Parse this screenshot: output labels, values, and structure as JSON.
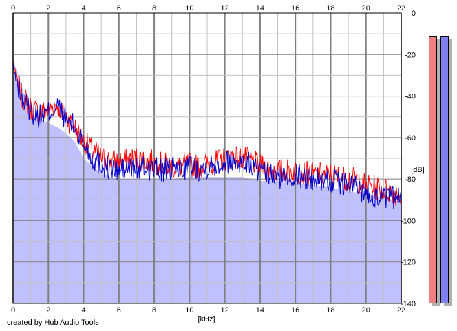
{
  "footer": {
    "credit": "created by Hub Audio Tools"
  },
  "colors": {
    "fill": "#c0c0ff",
    "left_channel": "#ff0000",
    "right_channel": "#0000cc",
    "grid_minor": "#c0c0c0",
    "grid_major": "#808080",
    "meter_left": "#f08080",
    "meter_right": "#8080f0"
  },
  "meters": {
    "left_level": 1.0,
    "right_level": 1.0
  },
  "chart_data": {
    "type": "line",
    "title": "",
    "xlabel": "[kHz]",
    "ylabel": "[dB]",
    "xlim": [
      0,
      22
    ],
    "ylim": [
      -140,
      0
    ],
    "x_ticks": [
      "0",
      "2",
      "4",
      "6",
      "8",
      "10",
      "12",
      "14",
      "16",
      "18",
      "20",
      "22"
    ],
    "y_ticks": [
      "0",
      "-20",
      "-40",
      "-60",
      "-80",
      "-100",
      "-120",
      "-140"
    ],
    "grid": true,
    "legend": "none",
    "fill_series": {
      "x": [
        0,
        0.1,
        0.3,
        0.5,
        0.8,
        1.0,
        1.5,
        2.0,
        2.5,
        3.0,
        3.5,
        4.0,
        4.5,
        5.0,
        5.5,
        6.0,
        7.0,
        8.0,
        9.0,
        10.0,
        11.0,
        12.0,
        13.0,
        14.0,
        15.0,
        16.0,
        17.0,
        18.0,
        19.0,
        20.0,
        21.0,
        22.0
      ],
      "y": [
        -22,
        -25,
        -30,
        -36,
        -43,
        -48,
        -51,
        -53,
        -55,
        -58,
        -62,
        -70,
        -74,
        -77,
        -79,
        -80,
        -80,
        -80,
        -80,
        -79,
        -79,
        -79,
        -79,
        -81,
        -81,
        -82,
        -83,
        -84,
        -86,
        -87,
        -89,
        -91
      ]
    },
    "series": [
      {
        "color": "#ff0000",
        "x": [
          0,
          0.1,
          0.3,
          0.5,
          0.8,
          1.0,
          1.5,
          2.0,
          2.5,
          3.0,
          3.5,
          4.0,
          4.5,
          5.0,
          5.5,
          6.0,
          6.5,
          7.0,
          7.5,
          8.0,
          8.5,
          9.0,
          9.5,
          10.0,
          10.5,
          11.0,
          11.5,
          12.0,
          12.5,
          13.0,
          13.5,
          14.0,
          14.5,
          15.0,
          15.5,
          16.0,
          16.5,
          17.0,
          17.5,
          18.0,
          18.5,
          19.0,
          19.5,
          20.0,
          20.5,
          21.0,
          21.5,
          22.0
        ],
        "y": [
          -23,
          -28,
          -35,
          -40,
          -43,
          -46,
          -48,
          -47,
          -44,
          -50,
          -55,
          -62,
          -66,
          -70,
          -71,
          -72,
          -71,
          -70,
          -71,
          -72,
          -73,
          -74,
          -74,
          -73,
          -74,
          -73,
          -72,
          -70,
          -69,
          -70,
          -71,
          -74,
          -75,
          -76,
          -76,
          -76,
          -77,
          -78,
          -78,
          -78,
          -79,
          -80,
          -80,
          -83,
          -84,
          -85,
          -86,
          -88
        ]
      },
      {
        "color": "#0000cc",
        "x": [
          0,
          0.1,
          0.3,
          0.5,
          0.8,
          1.0,
          1.5,
          2.0,
          2.5,
          3.0,
          3.5,
          4.0,
          4.5,
          5.0,
          5.5,
          6.0,
          6.5,
          7.0,
          7.5,
          8.0,
          8.5,
          9.0,
          9.5,
          10.0,
          10.5,
          11.0,
          11.5,
          12.0,
          12.5,
          13.0,
          13.5,
          14.0,
          14.5,
          15.0,
          15.5,
          16.0,
          16.5,
          17.0,
          17.5,
          18.0,
          18.5,
          19.0,
          19.5,
          20.0,
          20.5,
          21.0,
          21.5,
          22.0
        ],
        "y": [
          -24,
          -30,
          -36,
          -42,
          -45,
          -47,
          -50,
          -48,
          -45,
          -51,
          -55,
          -63,
          -70,
          -73,
          -75,
          -76,
          -75,
          -75,
          -75,
          -75,
          -76,
          -75,
          -75,
          -74,
          -75,
          -74,
          -73,
          -72,
          -71,
          -72,
          -73,
          -77,
          -78,
          -79,
          -79,
          -78,
          -79,
          -80,
          -80,
          -81,
          -82,
          -83,
          -84,
          -86,
          -88,
          -89,
          -89,
          -90
        ]
      }
    ]
  }
}
